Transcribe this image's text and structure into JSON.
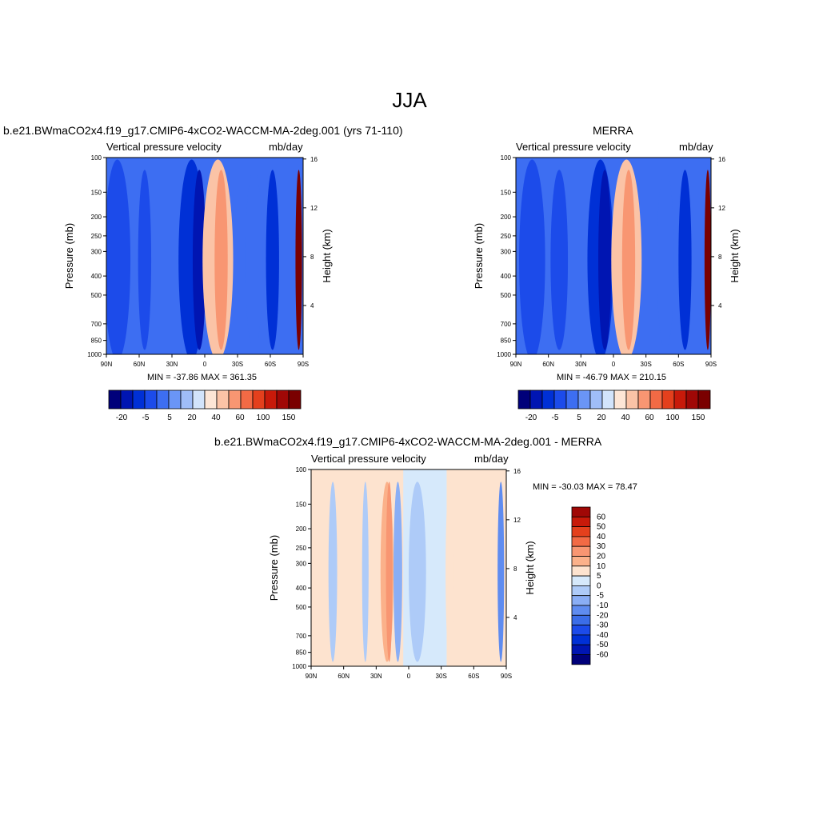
{
  "page": {
    "title": "JJA"
  },
  "chart_data": [
    {
      "type": "heatmap",
      "title": "b.e21.BWmaCO2x4.f19_g17.CMIP6-4xCO2-WACCM-MA-2deg.001 (yrs 71-110)",
      "left_label": "Vertical pressure velocity",
      "right_label": "mb/day",
      "ylabel": "Pressure (mb)",
      "y2label": "Height (km)",
      "xlabel": "",
      "x_ticks": [
        "90N",
        "60N",
        "30N",
        "0",
        "30S",
        "60S",
        "90S"
      ],
      "y_ticks": [
        "100",
        "150",
        "200",
        "250",
        "300",
        "400",
        "500",
        "700",
        "850",
        "1000"
      ],
      "y_tick_values": [
        100,
        150,
        200,
        250,
        300,
        400,
        500,
        700,
        850,
        1000
      ],
      "y2_ticks": [
        "16",
        "12",
        "8",
        "4"
      ],
      "y2_tick_values": [
        16,
        12,
        8,
        4
      ],
      "ylim": [
        1000,
        100
      ],
      "log_y": true,
      "minmax_text": "MIN = -37.86  MAX = 361.35",
      "min": -37.86,
      "max": 361.35,
      "colorbar_ticks": [
        "-20",
        "-5",
        "5",
        "20",
        "40",
        "60",
        "100",
        "150"
      ],
      "colorbar_orientation": "horizontal",
      "features": [
        {
          "lat": 80,
          "width": 12,
          "value": -10
        },
        {
          "lat": 55,
          "width": 6,
          "value": -10
        },
        {
          "lat": 12,
          "width": 12,
          "value": -20
        },
        {
          "lat": 5,
          "width": 6,
          "value": -30
        },
        {
          "lat": -12,
          "width": 14,
          "value": 20
        },
        {
          "lat": -15,
          "width": 6,
          "value": 30
        },
        {
          "lat": -45,
          "width": 8,
          "value": -5
        },
        {
          "lat": -62,
          "width": 6,
          "value": -20
        },
        {
          "lat": -86,
          "width": 3,
          "value": 150
        }
      ]
    },
    {
      "type": "heatmap",
      "title": "MERRA",
      "left_label": "Vertical pressure velocity",
      "right_label": "mb/day",
      "ylabel": "Pressure (mb)",
      "y2label": "Height (km)",
      "xlabel": "",
      "x_ticks": [
        "90N",
        "60N",
        "30N",
        "0",
        "30S",
        "60S",
        "90S"
      ],
      "y_ticks": [
        "100",
        "150",
        "200",
        "250",
        "300",
        "400",
        "500",
        "700",
        "850",
        "1000"
      ],
      "y_tick_values": [
        100,
        150,
        200,
        250,
        300,
        400,
        500,
        700,
        850,
        1000
      ],
      "y2_ticks": [
        "16",
        "12",
        "8",
        "4"
      ],
      "y2_tick_values": [
        16,
        12,
        8,
        4
      ],
      "ylim": [
        1000,
        100
      ],
      "log_y": true,
      "minmax_text": "MIN = -46.79  MAX = 210.15",
      "min": -46.79,
      "max": 210.15,
      "colorbar_ticks": [
        "-20",
        "-5",
        "5",
        "20",
        "40",
        "60",
        "100",
        "150"
      ],
      "colorbar_orientation": "horizontal",
      "features": [
        {
          "lat": 75,
          "width": 12,
          "value": -10
        },
        {
          "lat": 50,
          "width": 8,
          "value": -10
        },
        {
          "lat": 12,
          "width": 12,
          "value": -20
        },
        {
          "lat": 8,
          "width": 6,
          "value": -30
        },
        {
          "lat": -12,
          "width": 14,
          "value": 20
        },
        {
          "lat": -14,
          "width": 6,
          "value": 30
        },
        {
          "lat": -48,
          "width": 8,
          "value": -5
        },
        {
          "lat": -66,
          "width": 6,
          "value": -20
        },
        {
          "lat": -87,
          "width": 3,
          "value": 150
        }
      ]
    },
    {
      "type": "heatmap",
      "title": "b.e21.BWmaCO2x4.f19_g17.CMIP6-4xCO2-WACCM-MA-2deg.001 - MERRA",
      "left_label": "Vertical pressure velocity",
      "right_label": "mb/day",
      "ylabel": "Pressure (mb)",
      "y2label": "Height (km)",
      "xlabel": "",
      "x_ticks": [
        "90N",
        "60N",
        "30N",
        "0",
        "30S",
        "60S",
        "90S"
      ],
      "y_ticks": [
        "100",
        "150",
        "200",
        "250",
        "300",
        "400",
        "500",
        "700",
        "850",
        "1000"
      ],
      "y_tick_values": [
        100,
        150,
        200,
        250,
        300,
        400,
        500,
        700,
        850,
        1000
      ],
      "y2_ticks": [
        "16",
        "12",
        "8",
        "4"
      ],
      "y2_tick_values": [
        16,
        12,
        8,
        4
      ],
      "ylim": [
        1000,
        100
      ],
      "log_y": true,
      "minmax_text": "MIN = -30.03  MAX =  78.47",
      "min": -30.03,
      "max": 78.47,
      "colorbar_ticks": [
        "60",
        "50",
        "40",
        "30",
        "20",
        "10",
        "5",
        "0",
        "-5",
        "-10",
        "-20",
        "-30",
        "-40",
        "-50",
        "-60"
      ],
      "colorbar_orientation": "vertical",
      "features": [
        {
          "lat": 70,
          "width": 4,
          "value": -5
        },
        {
          "lat": 40,
          "width": 3,
          "value": -5
        },
        {
          "lat": 20,
          "width": 6,
          "value": 10
        },
        {
          "lat": 18,
          "width": 3,
          "value": 20
        },
        {
          "lat": 10,
          "width": 4,
          "value": -10
        },
        {
          "lat": -8,
          "width": 8,
          "value": -3
        },
        {
          "lat": -38,
          "width": 4,
          "value": 5
        },
        {
          "lat": -85,
          "width": 3,
          "value": -20
        }
      ]
    }
  ],
  "colorbars": {
    "top": {
      "colors": [
        "#00007a",
        "#0015b2",
        "#0030d6",
        "#1c4bea",
        "#3d6ef2",
        "#6a95f6",
        "#9fbdf8",
        "#d2e4fb",
        "#fde6d6",
        "#fbc3a6",
        "#f89672",
        "#f26a45",
        "#e4401d",
        "#c81a0a",
        "#a00806",
        "#7a0000"
      ]
    },
    "diff": {
      "colors": [
        "#a00806",
        "#c81a0a",
        "#e4401d",
        "#f26a45",
        "#f89672",
        "#fbb18a",
        "#fde3cf",
        "#d6e9fb",
        "#aecbf8",
        "#8aaef5",
        "#5f8cf0",
        "#3b6de8",
        "#1c4bea",
        "#0030d6",
        "#0015b2",
        "#00007a"
      ]
    }
  }
}
